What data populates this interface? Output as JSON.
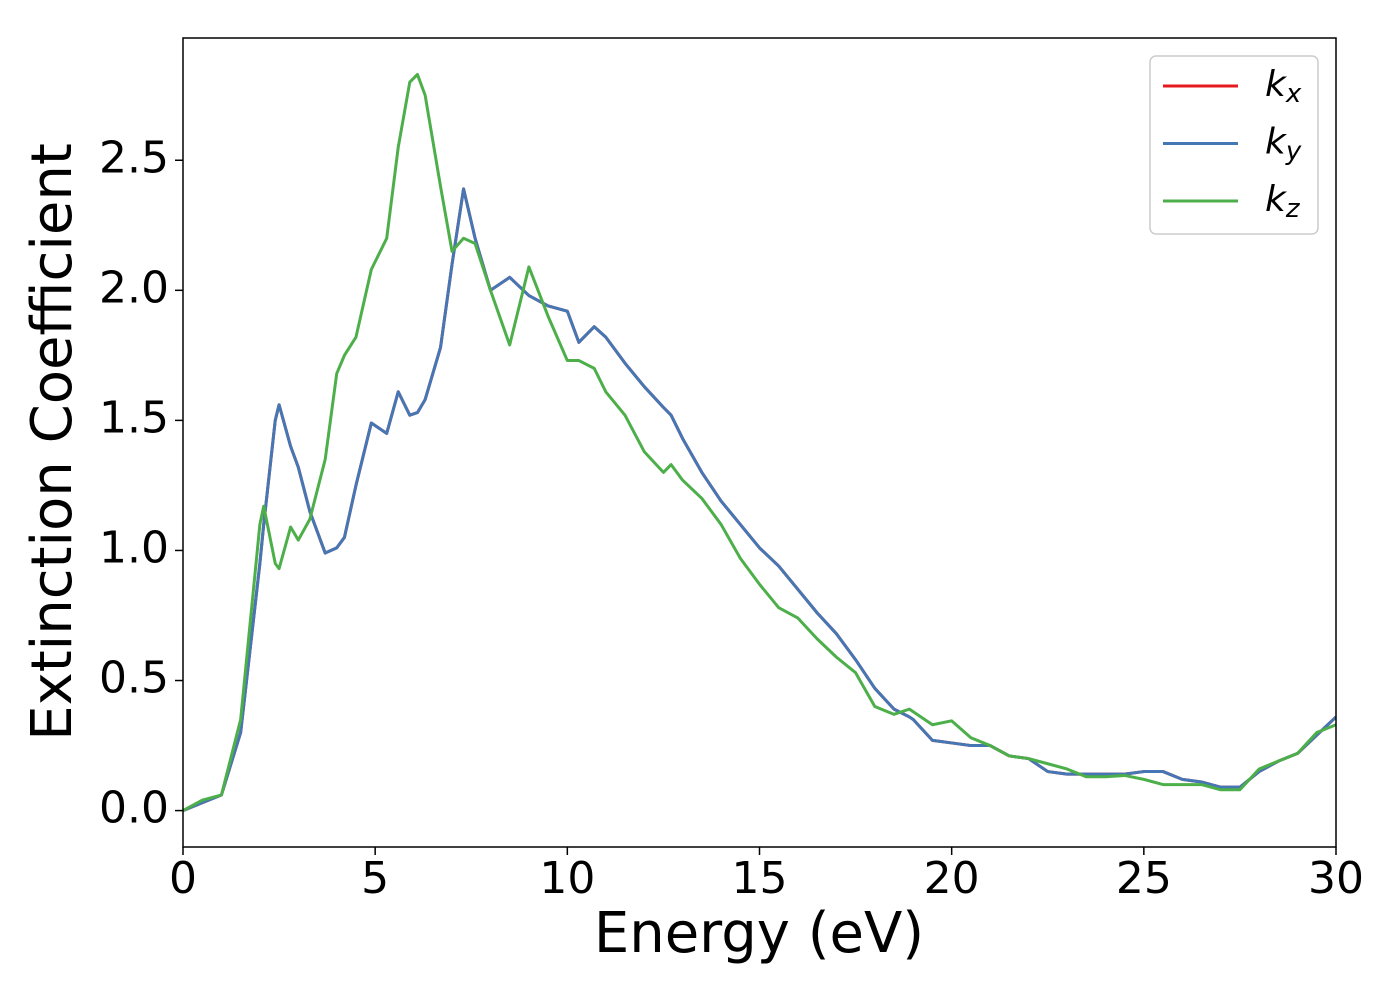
{
  "chart_data": {
    "type": "line",
    "x_label": "Energy (eV)",
    "y_label": "Extinction Coefficient",
    "x": [
      0,
      0.5,
      1,
      1.5,
      2,
      2.1,
      2.4,
      2.5,
      2.8,
      3,
      3.3,
      3.7,
      4,
      4.2,
      4.5,
      4.9,
      5.3,
      5.6,
      5.9,
      6.1,
      6.3,
      6.7,
      7,
      7.3,
      7.6,
      8,
      8.5,
      9,
      9.5,
      10,
      10.3,
      10.7,
      11,
      11.5,
      12,
      12.5,
      12.7,
      13,
      13.5,
      14,
      14.5,
      15,
      15.5,
      16,
      16.5,
      17,
      17.5,
      18,
      18.5,
      18.9,
      19,
      19.5,
      20,
      20.5,
      21,
      21.5,
      22,
      22.5,
      23,
      23.5,
      24,
      24.5,
      25,
      25.5,
      26,
      26.5,
      27,
      27.5,
      28,
      28.5,
      29,
      29.5,
      30
    ],
    "series": [
      {
        "name": "kx",
        "color": "#e41a1c",
        "values": [
          0,
          0.03,
          0.06,
          0.3,
          0.95,
          1.1,
          1.5,
          1.56,
          1.4,
          1.32,
          1.15,
          0.99,
          1.01,
          1.05,
          1.25,
          1.49,
          1.45,
          1.61,
          1.52,
          1.53,
          1.58,
          1.78,
          2.1,
          2.39,
          2.2,
          2.0,
          2.05,
          1.98,
          1.94,
          1.92,
          1.8,
          1.86,
          1.82,
          1.72,
          1.63,
          1.55,
          1.52,
          1.43,
          1.3,
          1.19,
          1.1,
          1.01,
          0.94,
          0.85,
          0.76,
          0.68,
          0.58,
          0.47,
          0.39,
          0.36,
          0.35,
          0.27,
          0.26,
          0.25,
          0.25,
          0.21,
          0.2,
          0.15,
          0.14,
          0.14,
          0.14,
          0.14,
          0.15,
          0.15,
          0.12,
          0.11,
          0.09,
          0.09,
          0.15,
          0.19,
          0.22,
          0.29,
          0.36
        ]
      },
      {
        "name": "ky",
        "color": "#4477b4",
        "values": [
          0,
          0.03,
          0.06,
          0.3,
          0.95,
          1.1,
          1.5,
          1.56,
          1.4,
          1.32,
          1.15,
          0.99,
          1.01,
          1.05,
          1.25,
          1.49,
          1.45,
          1.61,
          1.52,
          1.53,
          1.58,
          1.78,
          2.1,
          2.39,
          2.2,
          2.0,
          2.05,
          1.98,
          1.94,
          1.92,
          1.8,
          1.86,
          1.82,
          1.72,
          1.63,
          1.55,
          1.52,
          1.43,
          1.3,
          1.19,
          1.1,
          1.01,
          0.94,
          0.85,
          0.76,
          0.68,
          0.58,
          0.47,
          0.39,
          0.36,
          0.35,
          0.27,
          0.26,
          0.25,
          0.25,
          0.21,
          0.2,
          0.15,
          0.14,
          0.14,
          0.14,
          0.14,
          0.15,
          0.15,
          0.12,
          0.11,
          0.09,
          0.09,
          0.15,
          0.19,
          0.22,
          0.29,
          0.36
        ]
      },
      {
        "name": "kz",
        "color": "#4daf4a",
        "values": [
          0,
          0.04,
          0.06,
          0.35,
          1.1,
          1.17,
          0.95,
          0.93,
          1.09,
          1.04,
          1.12,
          1.35,
          1.68,
          1.75,
          1.82,
          2.08,
          2.2,
          2.55,
          2.8,
          2.83,
          2.75,
          2.4,
          2.15,
          2.2,
          2.18,
          2.0,
          1.79,
          2.09,
          1.9,
          1.73,
          1.73,
          1.7,
          1.61,
          1.52,
          1.38,
          1.3,
          1.33,
          1.27,
          1.2,
          1.1,
          0.97,
          0.87,
          0.78,
          0.74,
          0.66,
          0.59,
          0.53,
          0.4,
          0.37,
          0.39,
          0.38,
          0.33,
          0.345,
          0.28,
          0.25,
          0.21,
          0.2,
          0.18,
          0.16,
          0.13,
          0.13,
          0.135,
          0.12,
          0.1,
          0.1,
          0.1,
          0.08,
          0.08,
          0.16,
          0.19,
          0.22,
          0.3,
          0.33
        ]
      }
    ],
    "xlim": [
      0,
      30
    ],
    "ylim": [
      -0.14,
      2.97
    ],
    "xticks": [
      0,
      5,
      10,
      15,
      20,
      25,
      30
    ],
    "yticks": [
      {
        "value": 0,
        "label": "0.0"
      },
      0.5,
      {
        "value": 1,
        "label": "1.0"
      },
      1.5,
      {
        "value": 2,
        "label": "2.0"
      },
      2.5
    ],
    "legend": "upper right"
  }
}
